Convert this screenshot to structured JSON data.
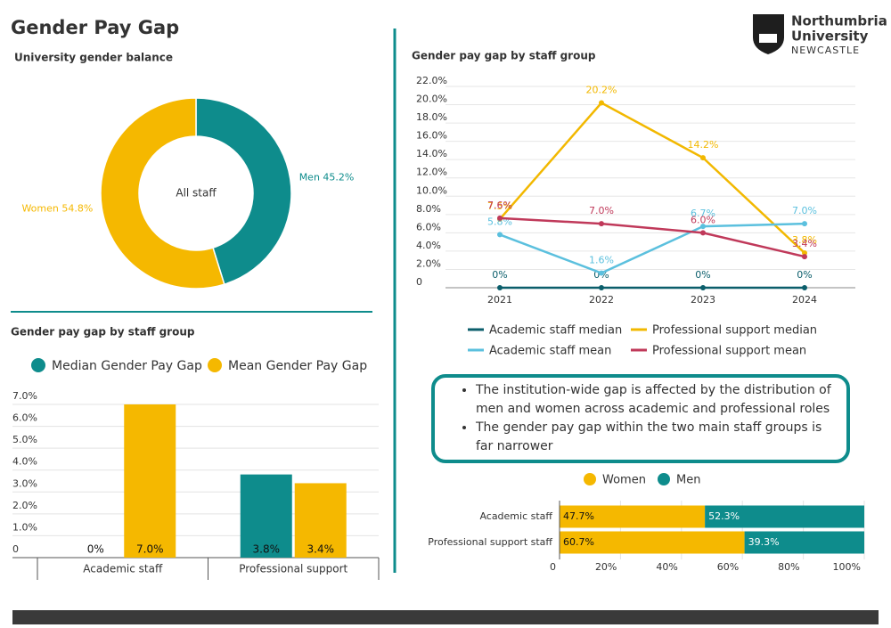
{
  "header": {
    "title": "Gender Pay Gap",
    "logo": [
      "Northumbria",
      "University",
      "NEWCASTLE"
    ]
  },
  "notes": [
    "The institution-wide gap is affected by the distribution of men and women across academic and professional roles",
    "The gender pay gap within the two main staff groups is far narrower"
  ],
  "chart_data": [
    {
      "type": "pie",
      "title": "University gender balance",
      "center_label": "All staff",
      "categories": [
        "Men",
        "Women"
      ],
      "values": [
        45.2,
        54.8
      ],
      "value_labels": [
        "Men 45.2%",
        "Women 54.8%"
      ],
      "colors": [
        "#0e8c8c",
        "#f5b800"
      ]
    },
    {
      "type": "bar",
      "title": "Gender pay gap by staff group",
      "categories": [
        "Academic staff",
        "Professional support"
      ],
      "series": [
        {
          "name": "Median Gender Pay Gap",
          "color": "#0e8c8c",
          "values": [
            0,
            3.8
          ],
          "value_labels": [
            "0%",
            "3.8%"
          ]
        },
        {
          "name": "Mean Gender Pay Gap",
          "color": "#f5b800",
          "values": [
            7.0,
            3.4
          ],
          "value_labels": [
            "7.0%",
            "3.4%"
          ]
        }
      ],
      "ylim": [
        0,
        7.0
      ],
      "yticks": [
        0,
        {
          "value": 1,
          "label": "1.0%"
        },
        {
          "value": 2,
          "label": "2.0%"
        },
        {
          "value": 3,
          "label": "3.0%"
        },
        {
          "value": 4,
          "label": "4.0%"
        },
        {
          "value": 5,
          "label": "5.0%"
        },
        {
          "value": 6,
          "label": "6.0%"
        },
        {
          "value": 7,
          "label": "7.0%"
        }
      ],
      "grid": true
    },
    {
      "type": "line",
      "title": "Gender pay gap by staff group",
      "categories": [
        "2021",
        "2022",
        "2023",
        "2024"
      ],
      "series": [
        {
          "name": "Academic staff median",
          "color": "#0b5e6b",
          "values": [
            0,
            0,
            0,
            0
          ],
          "value_labels": [
            "0%",
            "0%",
            "0%",
            "0%"
          ]
        },
        {
          "name": "Professional support median",
          "color": "#f2b800",
          "values": [
            7.5,
            20.2,
            14.2,
            3.8
          ],
          "value_labels": [
            "7.5%",
            "20.2%",
            "14.2%",
            "3.8%"
          ]
        },
        {
          "name": "Academic staff mean",
          "color": "#5bc0de",
          "values": [
            5.8,
            1.6,
            6.7,
            7.0
          ],
          "value_labels": [
            "5.8%",
            "1.6%",
            "6.7%",
            "7.0%"
          ]
        },
        {
          "name": "Professional support mean",
          "color": "#c0395a",
          "values": [
            7.6,
            7.0,
            6.0,
            3.4
          ],
          "value_labels": [
            "7.6%",
            "7.0%",
            "6.0%",
            "3.4%"
          ]
        }
      ],
      "ylim": [
        0,
        22
      ],
      "yticks": [
        0,
        {
          "value": 2,
          "label": "2.0%"
        },
        {
          "value": 4,
          "label": "4.0%"
        },
        {
          "value": 6,
          "label": "6.0%"
        },
        {
          "value": 8,
          "label": "8.0%"
        },
        {
          "value": 10,
          "label": "10.0%"
        },
        {
          "value": 12,
          "label": "12.0%"
        },
        {
          "value": 14,
          "label": "14.0%"
        },
        {
          "value": 16,
          "label": "16.0%"
        },
        {
          "value": 18,
          "label": "18.0%"
        },
        {
          "value": 20,
          "label": "20.0%"
        },
        {
          "value": 22,
          "label": "22.0%"
        }
      ],
      "grid": true
    },
    {
      "type": "bar",
      "orientation": "horizontal",
      "stacked": true,
      "categories": [
        "Academic staff",
        "Professional support staff"
      ],
      "series": [
        {
          "name": "Women",
          "color": "#f5b800",
          "values": [
            47.7,
            60.7
          ],
          "value_labels": [
            "47.7%",
            "60.7%"
          ]
        },
        {
          "name": "Men",
          "color": "#0e8c8c",
          "values": [
            52.3,
            39.3
          ],
          "value_labels": [
            "52.3%",
            "39.3%"
          ]
        }
      ],
      "xlim": [
        0,
        100
      ],
      "xticks": [
        0,
        {
          "value": 20,
          "label": "20%"
        },
        {
          "value": 40,
          "label": "40%"
        },
        {
          "value": 60,
          "label": "60%"
        },
        {
          "value": 80,
          "label": "80%"
        },
        {
          "value": 100,
          "label": "100%"
        }
      ],
      "grid": true
    }
  ]
}
